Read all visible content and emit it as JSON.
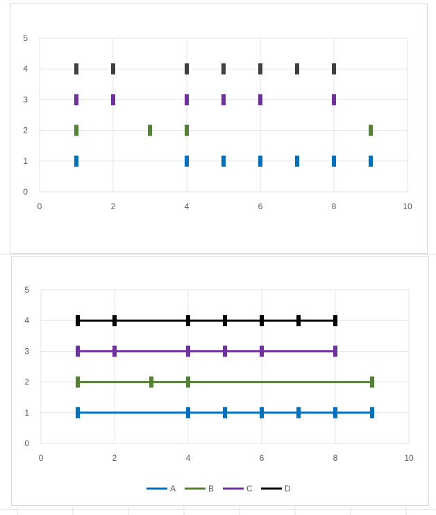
{
  "app": {
    "gridline_color": "#e3e3e3"
  },
  "chart_data": [
    {
      "type": "scatter",
      "title": "",
      "xlabel": "",
      "ylabel": "",
      "xlim": [
        0,
        10
      ],
      "ylim": [
        0,
        5
      ],
      "xticks": [
        0,
        2,
        4,
        6,
        8,
        10
      ],
      "yticks": [
        0,
        1,
        2,
        3,
        4,
        5
      ],
      "grid": true,
      "connect_lines": false,
      "legend": false,
      "series": [
        {
          "key": "A",
          "color": "#0070c0",
          "y": 1,
          "x": [
            1,
            4,
            5,
            6,
            7,
            8,
            9
          ]
        },
        {
          "key": "B",
          "color": "#548235",
          "y": 2,
          "x": [
            1,
            3,
            4,
            9
          ]
        },
        {
          "key": "C",
          "color": "#7030a0",
          "y": 3,
          "x": [
            1,
            2,
            4,
            5,
            6,
            8
          ]
        },
        {
          "key": "D",
          "color": "#404040",
          "y": 4,
          "x": [
            1,
            2,
            4,
            5,
            6,
            7,
            8
          ]
        }
      ]
    },
    {
      "type": "line",
      "title": "",
      "xlabel": "",
      "ylabel": "",
      "xlim": [
        0,
        10
      ],
      "ylim": [
        0,
        5
      ],
      "xticks": [
        0,
        2,
        4,
        6,
        8,
        10
      ],
      "yticks": [
        0,
        1,
        2,
        3,
        4,
        5
      ],
      "grid": true,
      "connect_lines": true,
      "legend": true,
      "legend_position": "bottom",
      "series": [
        {
          "name": "A",
          "color": "#0070c0",
          "y": 1,
          "x": [
            1,
            4,
            5,
            6,
            7,
            8,
            9
          ]
        },
        {
          "name": "B",
          "color": "#548235",
          "y": 2,
          "x": [
            1,
            3,
            4,
            9
          ]
        },
        {
          "name": "C",
          "color": "#7030a0",
          "y": 3,
          "x": [
            1,
            2,
            4,
            5,
            6,
            8
          ]
        },
        {
          "name": "D",
          "color": "#000000",
          "y": 4,
          "x": [
            1,
            2,
            4,
            5,
            6,
            7,
            8
          ]
        }
      ]
    }
  ]
}
